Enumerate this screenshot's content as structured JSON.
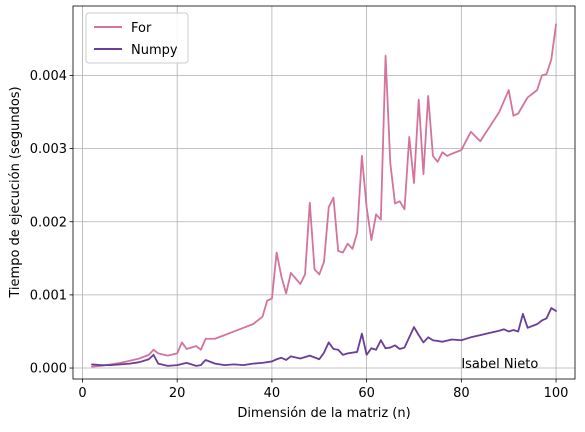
{
  "chart_data": {
    "type": "line",
    "xlabel": "Dimensión de la matriz (n)",
    "ylabel": "Tiempo de ejecución (segundos)",
    "xlim": [
      -2,
      104
    ],
    "ylim": [
      -0.00015,
      0.00495
    ],
    "xticks": [
      0,
      20,
      40,
      60,
      80,
      100
    ],
    "xtick_labels": [
      "0",
      "20",
      "40",
      "60",
      "80",
      "100"
    ],
    "yticks": [
      0.0,
      0.001,
      0.002,
      0.003,
      0.004
    ],
    "ytick_labels": [
      "0.000",
      "0.001",
      "0.002",
      "0.003",
      "0.004"
    ],
    "grid": true,
    "legend_position": "top-left",
    "annotation": {
      "text": "Isabel Nieto",
      "x": 80,
      "y": 0.0
    },
    "series": [
      {
        "name": "For",
        "color": "#d4739b",
        "x": [
          2,
          4,
          6,
          8,
          10,
          12,
          14,
          15,
          16,
          18,
          20,
          21,
          22,
          24,
          25,
          26,
          28,
          30,
          32,
          34,
          36,
          38,
          39,
          40,
          41,
          42,
          43,
          44,
          46,
          47,
          48,
          49,
          50,
          51,
          52,
          53,
          54,
          55,
          56,
          57,
          58,
          59,
          60,
          61,
          62,
          63,
          64,
          65,
          66,
          67,
          68,
          69,
          70,
          71,
          72,
          73,
          74,
          75,
          76,
          77,
          78,
          80,
          82,
          84,
          86,
          88,
          90,
          91,
          92,
          94,
          96,
          97,
          98,
          99,
          100
        ],
        "y": [
          2e-05,
          3e-05,
          5e-05,
          7e-05,
          0.0001,
          0.00013,
          0.00018,
          0.00025,
          0.0002,
          0.00017,
          0.0002,
          0.00035,
          0.00026,
          0.0003,
          0.00025,
          0.0004,
          0.0004,
          0.00045,
          0.0005,
          0.00055,
          0.0006,
          0.0007,
          0.00092,
          0.00095,
          0.00158,
          0.00125,
          0.00102,
          0.0013,
          0.00115,
          0.00128,
          0.00226,
          0.00135,
          0.00128,
          0.00145,
          0.0022,
          0.00233,
          0.0016,
          0.00158,
          0.0017,
          0.00163,
          0.00185,
          0.0029,
          0.0022,
          0.00175,
          0.0021,
          0.00203,
          0.00427,
          0.0028,
          0.00225,
          0.00228,
          0.00217,
          0.00316,
          0.00253,
          0.00367,
          0.00265,
          0.00372,
          0.0029,
          0.00282,
          0.00295,
          0.0029,
          0.00293,
          0.00298,
          0.00323,
          0.0031,
          0.0033,
          0.0035,
          0.0038,
          0.00345,
          0.00348,
          0.0037,
          0.0038,
          0.004,
          0.00402,
          0.00422,
          0.0047
        ]
      },
      {
        "name": "Numpy",
        "color": "#6a3d9a",
        "x": [
          2,
          4,
          6,
          8,
          10,
          12,
          14,
          15,
          16,
          18,
          20,
          22,
          24,
          25,
          26,
          28,
          30,
          32,
          34,
          36,
          38,
          40,
          41,
          42,
          43,
          44,
          46,
          48,
          50,
          51,
          52,
          53,
          54,
          55,
          56,
          58,
          59,
          60,
          61,
          62,
          63,
          64,
          65,
          66,
          67,
          68,
          70,
          71,
          72,
          73,
          74,
          76,
          78,
          80,
          82,
          84,
          86,
          88,
          89,
          90,
          91,
          92,
          93,
          94,
          96,
          97,
          98,
          99,
          100
        ],
        "y": [
          5e-05,
          4e-05,
          4e-05,
          5e-05,
          6e-05,
          8e-05,
          0.00012,
          0.00018,
          6e-05,
          3e-05,
          4e-05,
          7e-05,
          3e-05,
          4e-05,
          0.00011,
          6e-05,
          4e-05,
          5e-05,
          4e-05,
          6e-05,
          7e-05,
          9e-05,
          0.00012,
          0.00014,
          0.00011,
          0.00016,
          0.00013,
          0.00017,
          0.00012,
          0.00021,
          0.00035,
          0.00026,
          0.00025,
          0.00018,
          0.0002,
          0.00022,
          0.00047,
          0.00018,
          0.00027,
          0.00025,
          0.00038,
          0.00027,
          0.00028,
          0.00031,
          0.00026,
          0.00028,
          0.00056,
          0.00045,
          0.00035,
          0.00042,
          0.00038,
          0.00036,
          0.00039,
          0.00038,
          0.00042,
          0.00045,
          0.00048,
          0.00051,
          0.00053,
          0.0005,
          0.00052,
          0.0005,
          0.00074,
          0.00055,
          0.0006,
          0.00065,
          0.00068,
          0.00082,
          0.00078
        ]
      }
    ]
  }
}
